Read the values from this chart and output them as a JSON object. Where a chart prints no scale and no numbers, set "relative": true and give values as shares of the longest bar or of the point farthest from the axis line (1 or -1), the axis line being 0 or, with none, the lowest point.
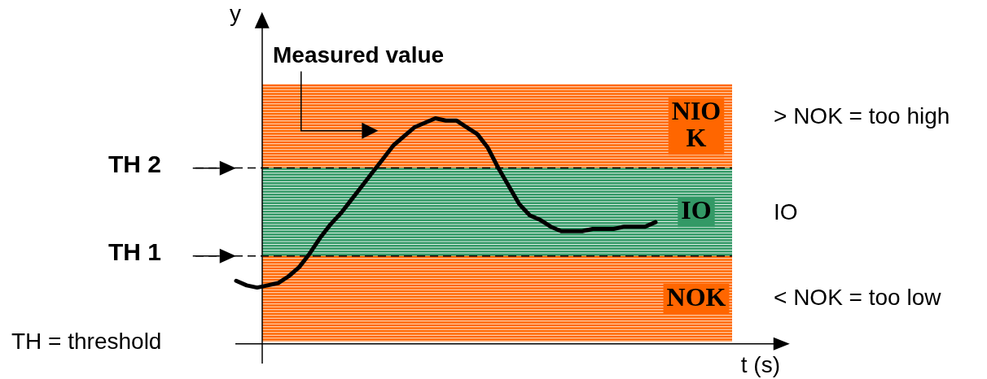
{
  "chart_data": {
    "type": "line",
    "relative": true,
    "xlabel": "t (s)",
    "ylabel": "y",
    "categories": [
      null,
      null,
      null,
      null,
      null,
      null,
      null,
      null,
      null,
      null,
      null,
      null,
      null,
      null,
      null,
      null,
      null,
      null,
      null,
      null,
      null,
      null,
      null,
      null,
      null,
      null,
      null,
      null,
      null,
      null,
      null,
      null,
      null,
      null,
      null,
      null,
      null,
      null,
      null,
      null,
      null
    ],
    "series": [
      {
        "name": "Measured value",
        "color": "#000000",
        "values": [
          0.28,
          0.26,
          0.25,
          0.26,
          0.27,
          0.3,
          0.34,
          0.4,
          0.47,
          0.53,
          0.58,
          0.64,
          0.7,
          0.76,
          0.82,
          0.88,
          0.92,
          0.96,
          0.98,
          1.0,
          0.99,
          0.99,
          0.96,
          0.93,
          0.87,
          0.78,
          0.7,
          0.62,
          0.57,
          0.55,
          0.52,
          0.5,
          0.5,
          0.5,
          0.51,
          0.51,
          0.51,
          0.52,
          0.52,
          0.52,
          0.54
        ]
      }
    ],
    "bands": [
      {
        "axis": "y",
        "from": 0.78,
        "to": 1.15,
        "label": "NIOK",
        "color": "#ff6600"
      },
      {
        "axis": "y",
        "from": 0.39,
        "to": 0.78,
        "label": "IO",
        "color": "#339966"
      },
      {
        "axis": "y",
        "from": 0.01,
        "to": 0.39,
        "label": "NOK",
        "color": "#ff6600"
      }
    ],
    "ref_lines": [
      {
        "axis": "y",
        "value": 0.78,
        "label": "TH 2",
        "color": "#000000",
        "line_style": "dashed"
      },
      {
        "axis": "y",
        "value": 0.39,
        "label": "TH 1",
        "color": "#000000",
        "line_style": "dashed"
      }
    ],
    "annotations": [
      "TH = threshold",
      "> NOK = too high",
      "IO",
      "< NOK = too low"
    ]
  }
}
